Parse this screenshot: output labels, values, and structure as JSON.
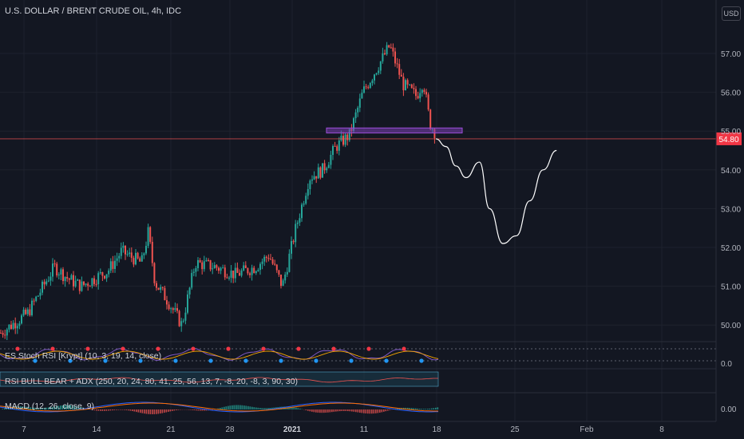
{
  "header": {
    "title": "U.S. DOLLAR / BRENT CRUDE OIL, 4h, IDC",
    "currency_button": "USD"
  },
  "colors": {
    "background": "#131722",
    "grid": "#1e222d",
    "candle_up": "#26a69a",
    "candle_down": "#ef5350",
    "zone_fill": "#7b3fb5",
    "price_line": "#ef5350",
    "drawing": "#ffffff",
    "macd": "#2962ff",
    "signal": "#ff6d00"
  },
  "chart_data": [
    {
      "type": "candlestick",
      "title": "U.S. DOLLAR / BRENT CRUDE OIL, 4h, IDC",
      "y_ticks": [
        "57.00",
        "56.00",
        "55.00",
        "54.00",
        "53.00",
        "52.00",
        "51.00",
        "50.00"
      ],
      "x_ticks": [
        "7",
        "14",
        "21",
        "28",
        "2021",
        "11",
        "18",
        "25",
        "Feb",
        "8"
      ],
      "last_price": "54.80",
      "ylim": [
        49.6,
        57.6
      ],
      "grid": true,
      "path_points": [
        [
          0,
          49.8
        ],
        [
          4,
          50.3
        ],
        [
          8,
          51.5
        ],
        [
          10,
          51.2
        ],
        [
          12,
          51.0
        ],
        [
          16,
          51.4
        ],
        [
          18,
          51.9
        ],
        [
          21,
          51.6
        ],
        [
          22,
          52.4
        ],
        [
          23,
          51.1
        ],
        [
          25,
          50.6
        ],
        [
          27,
          50.0
        ],
        [
          29,
          51.6
        ],
        [
          32,
          51.5
        ],
        [
          35,
          51.3
        ],
        [
          38,
          51.5
        ],
        [
          40,
          51.8
        ],
        [
          42,
          51.0
        ],
        [
          44,
          52.5
        ],
        [
          46,
          53.8
        ],
        [
          48,
          54.0
        ],
        [
          50,
          54.6
        ],
        [
          52,
          54.9
        ],
        [
          54,
          56.0
        ],
        [
          55,
          56.3
        ],
        [
          57,
          56.9
        ],
        [
          58,
          57.2
        ],
        [
          60,
          56.2
        ],
        [
          62,
          55.9
        ],
        [
          63,
          56.3
        ],
        [
          64,
          55.2
        ],
        [
          65,
          54.9
        ]
      ],
      "projection_points": [
        [
          65,
          54.8
        ],
        [
          66.5,
          54.6
        ],
        [
          68,
          54.1
        ],
        [
          69.5,
          53.8
        ],
        [
          71.5,
          54.2
        ],
        [
          73,
          53.0
        ],
        [
          75,
          52.1
        ],
        [
          77,
          52.3
        ],
        [
          79,
          53.2
        ],
        [
          81,
          54.0
        ],
        [
          83,
          54.5
        ]
      ],
      "zone": {
        "y_low": 54.95,
        "y_high": 55.08
      },
      "last_price_value": 54.8
    },
    {
      "type": "line",
      "title": "ES Stoch RSI [Krypt] (10, 3, 19, 14, close)",
      "y_ticks": [
        "0.0"
      ],
      "ylim": [
        -10,
        110
      ]
    },
    {
      "type": "line",
      "title": "RSI BULL BEAR + ADX (250, 20, 24, 80, 41, 25, 56, 13, 7, -8, 20, -8, 3, 90, 30)",
      "ylim": [
        0,
        100
      ]
    },
    {
      "type": "bar",
      "title": "MACD (12, 26, close, 9)",
      "y_ticks": [
        "0.00"
      ],
      "ylim": [
        -1,
        1
      ]
    }
  ]
}
